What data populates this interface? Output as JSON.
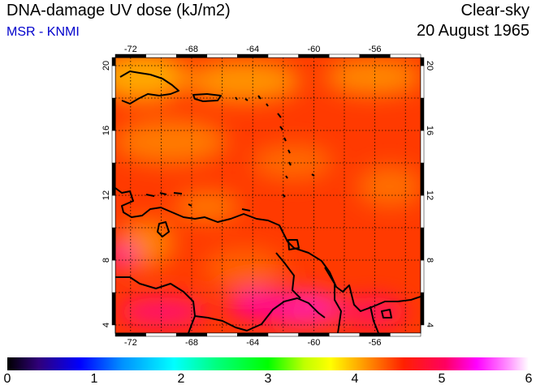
{
  "header": {
    "title": "DNA-damage UV dose (kJ/m2)",
    "source": "MSR - KNMI",
    "condition": "Clear-sky",
    "date": "20 August 1965"
  },
  "map": {
    "lon_range": [
      -73,
      -53
    ],
    "lat_range": [
      3.5,
      20.5
    ],
    "lon_ticks": [
      -72,
      -68,
      -64,
      -60,
      -56
    ],
    "lat_ticks": [
      4,
      8,
      12,
      16,
      20
    ],
    "grid": "dotted",
    "graticule_lon": [
      -72,
      -70,
      -68,
      -66,
      -64,
      -62,
      -60,
      -58,
      -56,
      -54
    ],
    "graticule_lat": [
      4,
      6,
      8,
      10,
      12,
      14,
      16,
      18,
      20
    ]
  },
  "colorbar": {
    "min": 0,
    "max": 6,
    "labels": [
      "0",
      "1",
      "2",
      "3",
      "4",
      "5",
      "6"
    ]
  },
  "colors": {
    "title": "#000000",
    "source": "#0000cc",
    "dominant_field": "#ff3000",
    "high_field": "#ff0090",
    "low_field": "#ffa000",
    "coastline": "#000000"
  }
}
